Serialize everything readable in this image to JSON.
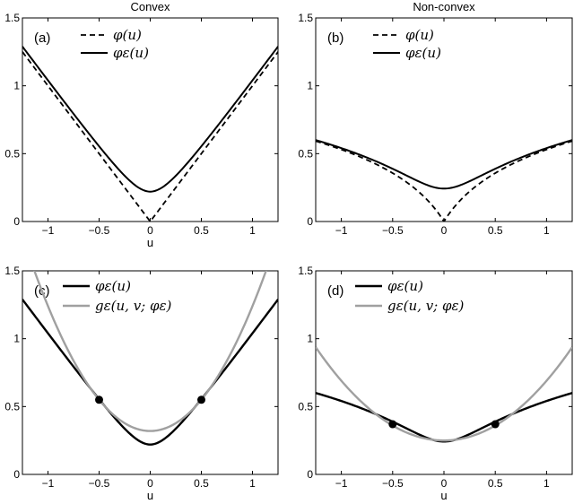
{
  "chart_data": [
    {
      "type": "line",
      "panel": "(a)",
      "title": "Convex",
      "xlabel": "u",
      "xlim": [
        -1.25,
        1.25
      ],
      "ylim": [
        0,
        1.5
      ],
      "xticks": [
        -1,
        -0.5,
        0,
        0.5,
        1
      ],
      "xtick_labels": [
        "−1",
        "−0.5",
        "0",
        "0.5",
        "1"
      ],
      "yticks": [
        0,
        0.5,
        1,
        1.5
      ],
      "ytick_labels": [
        "0",
        "0.5",
        "1",
        "1.5"
      ],
      "legend_position": "top-center",
      "series": [
        {
          "name": "φ(u)",
          "style": "dashed",
          "color": "#000000",
          "x": [
            -1.25,
            -1,
            -0.75,
            -0.5,
            -0.25,
            0,
            0.25,
            0.5,
            0.75,
            1,
            1.25
          ],
          "y": [
            1.25,
            1.0,
            0.75,
            0.5,
            0.25,
            0.0,
            0.25,
            0.5,
            0.75,
            1.0,
            1.25
          ]
        },
        {
          "name": "φε(u)",
          "style": "solid",
          "color": "#000000",
          "x": [
            -1.25,
            -1,
            -0.75,
            -0.5,
            -0.25,
            0,
            0.25,
            0.5,
            0.75,
            1,
            1.25
          ],
          "y": [
            1.27,
            1.03,
            0.78,
            0.55,
            0.34,
            0.22,
            0.34,
            0.55,
            0.78,
            1.03,
            1.27
          ]
        }
      ]
    },
    {
      "type": "line",
      "panel": "(b)",
      "title": "Non-convex",
      "xlabel": "",
      "xlim": [
        -1.25,
        1.25
      ],
      "ylim": [
        0,
        1.5
      ],
      "xticks": [
        -1,
        -0.5,
        0,
        0.5,
        1
      ],
      "xtick_labels": [
        "−1",
        "−0.5",
        "0",
        "0.5",
        "1"
      ],
      "yticks": [
        0,
        0.5,
        1,
        1.5
      ],
      "ytick_labels": [
        "0",
        "0.5",
        "1",
        "1.5"
      ],
      "legend_position": "top-center",
      "series": [
        {
          "name": "φ(u)",
          "style": "dashed",
          "color": "#000000",
          "x": [
            -1.25,
            -1,
            -0.75,
            -0.5,
            -0.25,
            0,
            0.25,
            0.5,
            0.75,
            1,
            1.25
          ],
          "y": [
            0.63,
            0.56,
            0.47,
            0.36,
            0.22,
            0.0,
            0.22,
            0.36,
            0.47,
            0.56,
            0.63
          ]
        },
        {
          "name": "φε(u)",
          "style": "solid",
          "color": "#000000",
          "x": [
            -1.25,
            -1,
            -0.75,
            -0.5,
            -0.25,
            0,
            0.25,
            0.5,
            0.75,
            1,
            1.25
          ],
          "y": [
            0.63,
            0.56,
            0.47,
            0.37,
            0.26,
            0.18,
            0.26,
            0.37,
            0.47,
            0.56,
            0.63
          ]
        }
      ]
    },
    {
      "type": "line",
      "panel": "(c)",
      "title": "",
      "xlabel": "u",
      "xlim": [
        -1.25,
        1.25
      ],
      "ylim": [
        0,
        1.5
      ],
      "xticks": [
        -1,
        -0.5,
        0,
        0.5,
        1
      ],
      "xtick_labels": [
        "−1",
        "−0.5",
        "0",
        "0.5",
        "1"
      ],
      "yticks": [
        0,
        0.5,
        1,
        1.5
      ],
      "ytick_labels": [
        "0",
        "0.5",
        "1",
        "1.5"
      ],
      "legend_position": "top-center",
      "series": [
        {
          "name": "φε(u)",
          "style": "solid",
          "color": "#000000",
          "x": [
            -1.25,
            -1,
            -0.75,
            -0.5,
            -0.25,
            0,
            0.25,
            0.5,
            0.75,
            1,
            1.25
          ],
          "y": [
            1.27,
            1.03,
            0.78,
            0.55,
            0.34,
            0.22,
            0.34,
            0.55,
            0.78,
            1.03,
            1.27
          ]
        },
        {
          "name": "gε(u, v; φε)",
          "style": "solid",
          "color": "#a0a0a0",
          "x": [
            -1.25,
            -1,
            -0.75,
            -0.5,
            -0.25,
            0,
            0.25,
            0.5,
            0.75,
            1,
            1.25
          ],
          "y": [
            1.52,
            1.2,
            0.83,
            0.55,
            0.37,
            0.32,
            0.37,
            0.55,
            0.83,
            1.2,
            1.52
          ]
        }
      ],
      "points": {
        "x": [
          -0.5,
          0.5
        ],
        "y": [
          0.55,
          0.55
        ]
      }
    },
    {
      "type": "line",
      "panel": "(d)",
      "title": "",
      "xlabel": "u",
      "xlim": [
        -1.25,
        1.25
      ],
      "ylim": [
        0,
        1.5
      ],
      "xticks": [
        -1,
        -0.5,
        0,
        0.5,
        1
      ],
      "xtick_labels": [
        "−1",
        "−0.5",
        "0",
        "0.5",
        "1"
      ],
      "yticks": [
        0,
        0.5,
        1,
        1.5
      ],
      "ytick_labels": [
        "0",
        "0.5",
        "1",
        "1.5"
      ],
      "legend_position": "top-center",
      "series": [
        {
          "name": "φε(u)",
          "style": "solid",
          "color": "#000000",
          "x": [
            -1.25,
            -1,
            -0.75,
            -0.5,
            -0.25,
            0,
            0.25,
            0.5,
            0.75,
            1,
            1.25
          ],
          "y": [
            0.63,
            0.56,
            0.47,
            0.37,
            0.26,
            0.18,
            0.26,
            0.37,
            0.47,
            0.56,
            0.63
          ]
        },
        {
          "name": "gε(u, v; φε)",
          "style": "solid",
          "color": "#a0a0a0",
          "x": [
            -1.25,
            -1,
            -0.75,
            -0.5,
            -0.25,
            0,
            0.25,
            0.5,
            0.75,
            1,
            1.25
          ],
          "y": [
            0.94,
            0.72,
            0.52,
            0.37,
            0.28,
            0.25,
            0.28,
            0.37,
            0.52,
            0.72,
            0.94
          ]
        }
      ],
      "points": {
        "x": [
          -0.5,
          0.5
        ],
        "y": [
          0.37,
          0.37
        ]
      }
    }
  ]
}
